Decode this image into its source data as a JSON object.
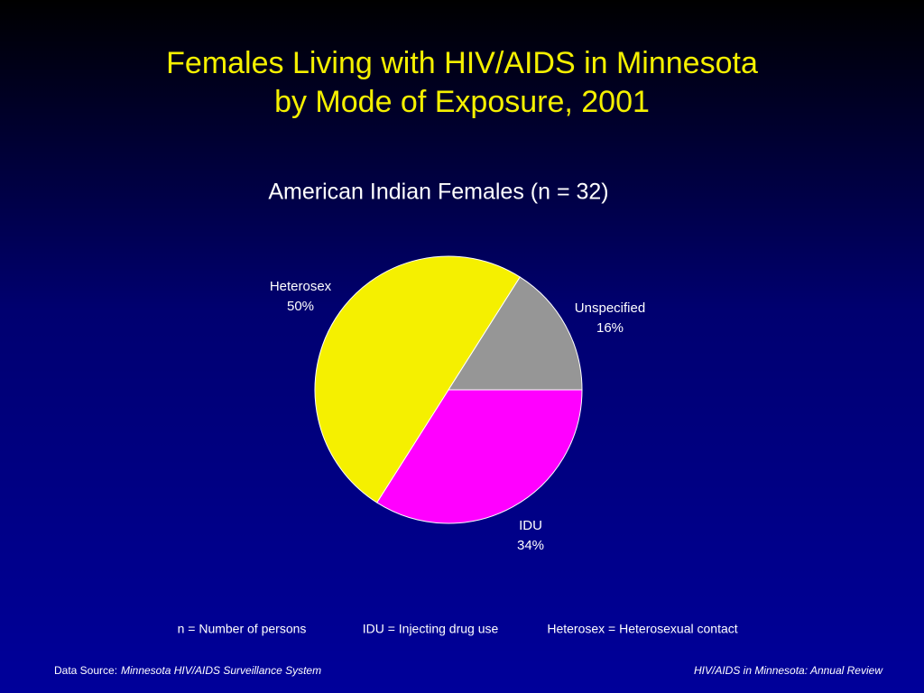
{
  "chart_data": {
    "type": "pie",
    "title": [
      "Females Living with HIV/AIDS in Minnesota",
      "by Mode of Exposure, 2001"
    ],
    "subtitle": "American Indian Females (n = 32)",
    "categories": [
      "IDU",
      "Heterosex",
      "Unspecified"
    ],
    "values": [
      34,
      50,
      16
    ],
    "value_labels": [
      "34%",
      "50%",
      "16%"
    ],
    "colors": [
      "#ff00ff",
      "#f5f000",
      "#969696"
    ],
    "notes": [
      "n = Number of persons",
      "IDU = Injecting drug use",
      "Heterosex = Heterosexual contact"
    ],
    "source_label": "Data Source:",
    "source": "Minnesota HIV/AIDS Surveillance System",
    "credit": "HIV/AIDS in Minnesota: Annual Review"
  }
}
